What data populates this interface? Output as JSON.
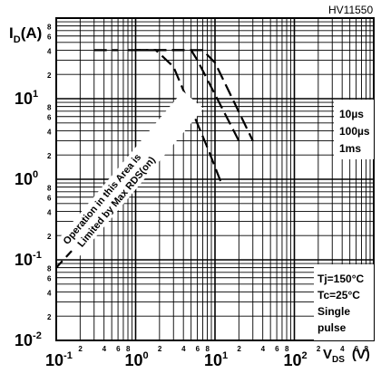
{
  "header_code": "HV11550",
  "chart_data": {
    "type": "line",
    "title": "",
    "y_axis_title": "I",
    "y_axis_title_sub": "D",
    "y_axis_unit": "(A)",
    "x_axis_title": "V",
    "x_axis_title_sub": "DS",
    "x_axis_unit": "(V)",
    "x_scale": "log",
    "y_scale": "log",
    "xlim": [
      0.1,
      1000
    ],
    "ylim": [
      0.01,
      100
    ],
    "x_decade_labels": [
      {
        "base": "10",
        "exp": "-1"
      },
      {
        "base": "10",
        "exp": "0"
      },
      {
        "base": "10",
        "exp": "1"
      },
      {
        "base": "10",
        "exp": "2"
      }
    ],
    "y_decade_labels": [
      {
        "base": "10",
        "exp": "-2"
      },
      {
        "base": "10",
        "exp": "-1"
      },
      {
        "base": "10",
        "exp": "0"
      },
      {
        "base": "10",
        "exp": "1"
      }
    ],
    "minor_tick_labels": [
      "2",
      "4",
      "6",
      "8"
    ],
    "grid": true,
    "rds_limit_annotation": "Operation in this Area is Limited by Max RDS(on)",
    "pulse_legend": [
      "10µs",
      "100µs",
      "1ms"
    ],
    "conditions_lines": [
      "Tj=150°C",
      "Tc=25°C",
      "Single",
      "pulse"
    ],
    "series": [
      {
        "name": "10µs",
        "points": [
          [
            1.0,
            40
          ],
          [
            7.0,
            40
          ],
          [
            10.0,
            28
          ],
          [
            30.0,
            3
          ]
        ]
      },
      {
        "name": "100µs",
        "points": [
          [
            1.0,
            40
          ],
          [
            5.0,
            40
          ],
          [
            6.0,
            30
          ],
          [
            20.0,
            3
          ]
        ]
      },
      {
        "name": "1ms",
        "points": [
          [
            0.8,
            40
          ],
          [
            1.8,
            40
          ],
          [
            3.0,
            25
          ],
          [
            8.0,
            2.5
          ],
          [
            12.0,
            0.9
          ]
        ]
      },
      {
        "name": "",
        "points": [
          [
            0.3,
            40
          ],
          [
            0.6,
            40
          ]
        ]
      },
      {
        "name": "",
        "points": [
          [
            0.1,
            0.08
          ],
          [
            3.0,
            3
          ]
        ]
      }
    ]
  }
}
